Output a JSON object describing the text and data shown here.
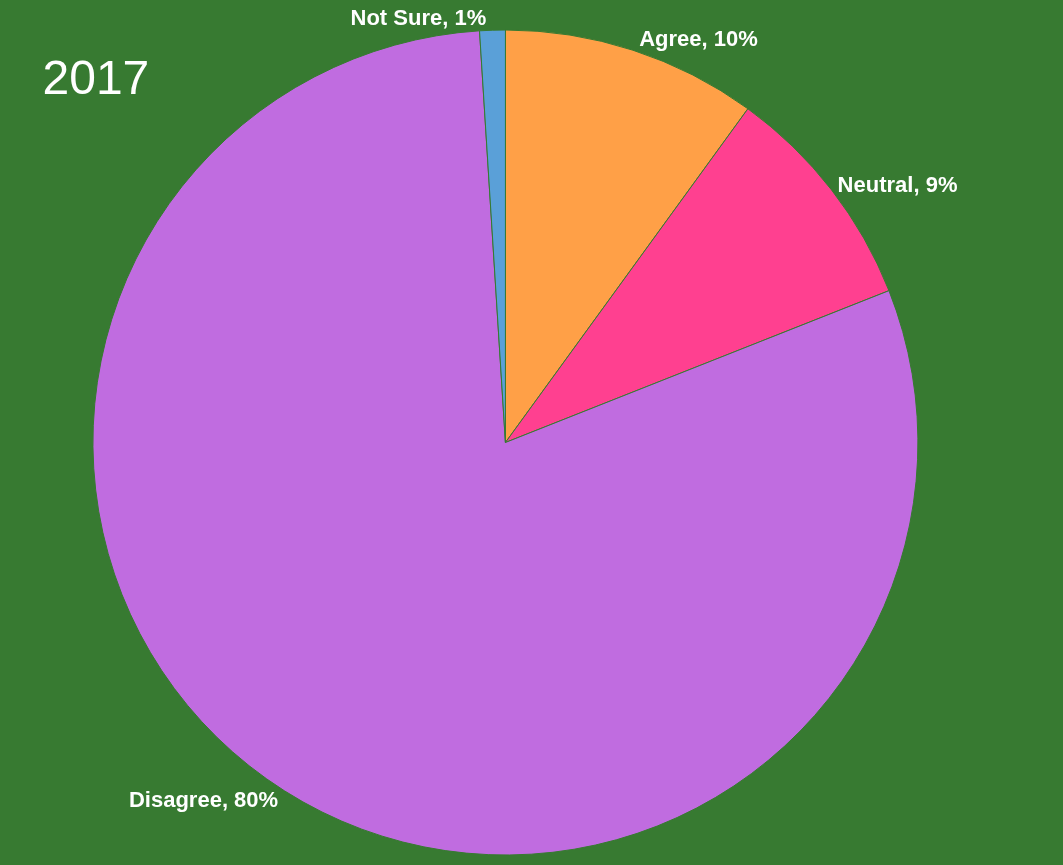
{
  "chart_data": {
    "type": "pie",
    "title": "2017",
    "categories": [
      "Agree",
      "Neutral",
      "Disagree",
      "Not Sure"
    ],
    "values": [
      10,
      9,
      80,
      1
    ],
    "value_labels": [
      "10%",
      "9%",
      "80%",
      "1%"
    ],
    "colors": [
      "#ffa047",
      "#ff4090",
      "#c06ce0",
      "#5aa0d8"
    ],
    "legend": false
  }
}
